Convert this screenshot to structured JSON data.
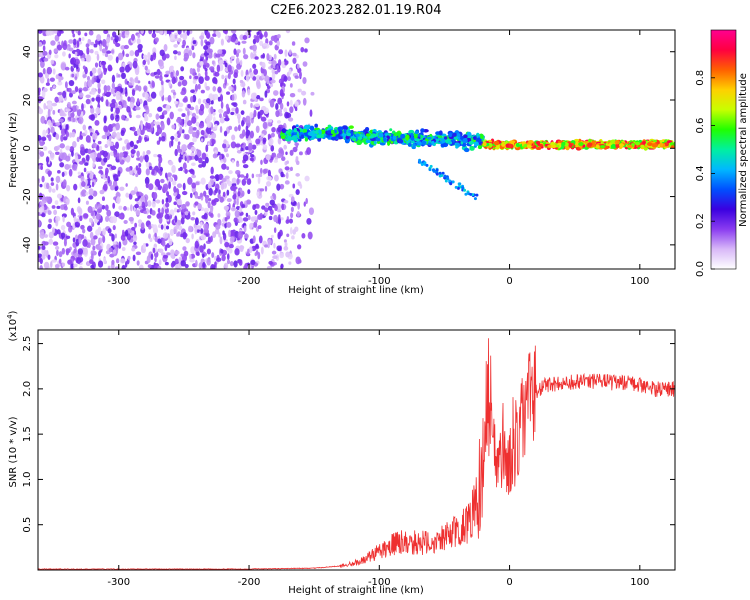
{
  "title": "C2E6.2023.282.01.19.R04",
  "chart_data": [
    {
      "type": "heatmap",
      "xlabel": "Height of straight line (km)",
      "ylabel": "Frequency (Hz)",
      "xlim": [
        -362,
        127
      ],
      "ylim": [
        -50,
        49
      ],
      "xticks": [
        "-300",
        "-200",
        "-100",
        "0",
        "100"
      ],
      "yticks": [
        "-40",
        "-20",
        "0",
        "20",
        "40"
      ],
      "grid": false,
      "colorbar": {
        "label": "Normalized spectral amplitude",
        "range": [
          0,
          1
        ],
        "ticks": [
          "0.0",
          "0.2",
          "0.4",
          "0.6",
          "0.8"
        ],
        "colors": [
          "#ffffff",
          "#d8b8f8",
          "#8a3cf0",
          "#3a00e0",
          "#0050ff",
          "#00b8ff",
          "#00f0a0",
          "#20ff00",
          "#c8ff00",
          "#ffd000",
          "#ff6000",
          "#ff0040",
          "#ff0090"
        ]
      },
      "regions": [
        {
          "name": "noise",
          "x": [
            -362,
            -150
          ],
          "freq": [
            -50,
            49
          ],
          "amplitude": 0.15
        },
        {
          "name": "echo",
          "x": [
            -175,
            127
          ],
          "freq_center": 1,
          "freq_width": 6,
          "amplitude_peak": 0.9
        }
      ]
    },
    {
      "type": "line",
      "xlabel": "Height of straight line (km)",
      "ylabel": "SNR (10 * v/v)",
      "y_multiplier": "(x10",
      "y_multiplier_exp": "4",
      "y_multiplier_close": ")",
      "xlim": [
        -362,
        127
      ],
      "ylim": [
        0,
        2.65
      ],
      "xticks": [
        "-300",
        "-200",
        "-100",
        "0",
        "100"
      ],
      "yticks": [
        "0.5",
        "1.0",
        "1.5",
        "2.0",
        "2.5"
      ],
      "color": "#ee3030",
      "grid": false,
      "x": [
        -362,
        -300,
        -200,
        -150,
        -125,
        -110,
        -100,
        -90,
        -80,
        -70,
        -60,
        -50,
        -40,
        -30,
        -25,
        -20,
        -15,
        -10,
        -5,
        0,
        5,
        10,
        15,
        20,
        25,
        30,
        40,
        50,
        60,
        70,
        80,
        90,
        100,
        110,
        127
      ],
      "y": [
        0.01,
        0.01,
        0.01,
        0.02,
        0.05,
        0.12,
        0.22,
        0.28,
        0.32,
        0.3,
        0.3,
        0.35,
        0.45,
        0.55,
        0.75,
        1.2,
        1.5,
        1.45,
        1.35,
        1.25,
        1.5,
        1.75,
        1.9,
        1.98,
        2.02,
        2.05,
        2.06,
        2.07,
        2.08,
        2.08,
        2.07,
        2.06,
        2.05,
        2.0,
        2.0
      ]
    }
  ]
}
